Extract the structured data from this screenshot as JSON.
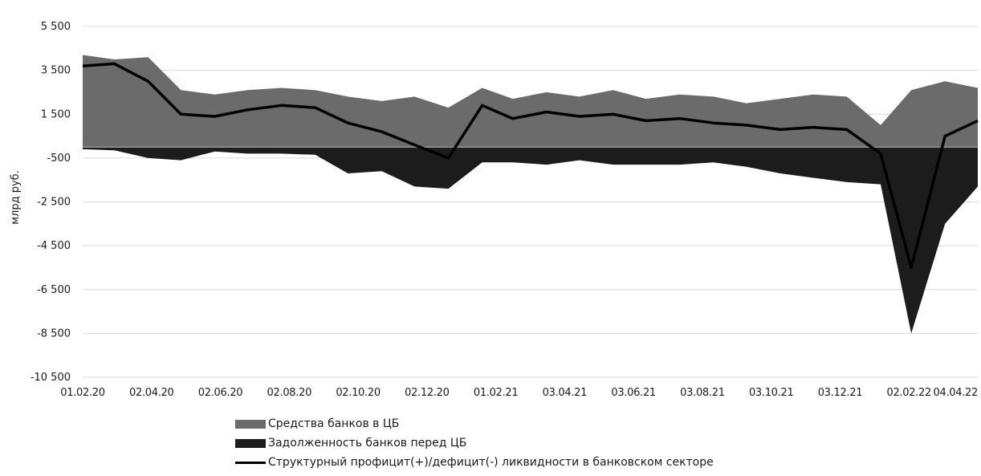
{
  "chart_data": {
    "type": "area",
    "ylabel": "млрд руб.",
    "ylim": [
      -10500,
      5500
    ],
    "yticks": [
      "5 500",
      "3 500",
      "1 500",
      "-500",
      "-2 500",
      "-4 500",
      "-6 500",
      "-8 500",
      "-10 500"
    ],
    "ytick_values": [
      5500,
      3500,
      1500,
      -500,
      -2500,
      -4500,
      -6500,
      -8500,
      -10500
    ],
    "xticks": [
      "01.02.20",
      "02.04.20",
      "02.06.20",
      "02.08.20",
      "02.10.20",
      "02.12.20",
      "01.02.21",
      "03.04.21",
      "03.06.21",
      "03.08.21",
      "03.10.21",
      "03.12.21",
      "02.02.22",
      "04.04.22"
    ],
    "xlim": [
      "2020-02-01",
      "2022-05-01"
    ],
    "grid": true,
    "legend_position": "bottom",
    "series": [
      {
        "name": "Средства банков в ЦБ",
        "kind": "area",
        "color": "#6b6b6b",
        "x": [
          "2020-02-01",
          "2020-03-01",
          "2020-04-01",
          "2020-05-01",
          "2020-06-01",
          "2020-07-01",
          "2020-08-01",
          "2020-09-01",
          "2020-10-01",
          "2020-11-01",
          "2020-12-01",
          "2021-01-01",
          "2021-02-01",
          "2021-03-01",
          "2021-04-01",
          "2021-05-01",
          "2021-06-01",
          "2021-07-01",
          "2021-08-01",
          "2021-09-01",
          "2021-10-01",
          "2021-11-01",
          "2021-12-01",
          "2022-01-01",
          "2022-02-01",
          "2022-03-01",
          "2022-04-01",
          "2022-05-01"
        ],
        "values": [
          4200,
          4000,
          4100,
          2600,
          2400,
          2600,
          2700,
          2600,
          2300,
          2100,
          2300,
          1800,
          2700,
          2200,
          2500,
          2300,
          2600,
          2200,
          2400,
          2300,
          2000,
          2200,
          2400,
          2300,
          1000,
          2600,
          3000,
          2700
        ]
      },
      {
        "name": "Задолженность банков перед ЦБ",
        "kind": "area",
        "color": "#1c1c1c",
        "x": [
          "2020-02-01",
          "2020-03-01",
          "2020-04-01",
          "2020-05-01",
          "2020-06-01",
          "2020-07-01",
          "2020-08-01",
          "2020-09-01",
          "2020-10-01",
          "2020-11-01",
          "2020-12-01",
          "2021-01-01",
          "2021-02-01",
          "2021-03-01",
          "2021-04-01",
          "2021-05-01",
          "2021-06-01",
          "2021-07-01",
          "2021-08-01",
          "2021-09-01",
          "2021-10-01",
          "2021-11-01",
          "2021-12-01",
          "2022-01-01",
          "2022-02-01",
          "2022-03-01",
          "2022-04-01",
          "2022-05-01"
        ],
        "values": [
          -100,
          -150,
          -500,
          -600,
          -200,
          -300,
          -300,
          -350,
          -1200,
          -1100,
          -1800,
          -1900,
          -700,
          -700,
          -800,
          -600,
          -800,
          -800,
          -800,
          -700,
          -900,
          -1200,
          -1400,
          -1600,
          -1700,
          -8500,
          -3500,
          -1800
        ]
      },
      {
        "name": "Структурный профицит(+)/дефицит(-) ликвидности в банковском секторе",
        "kind": "line",
        "color": "#000000",
        "x": [
          "2020-02-01",
          "2020-03-01",
          "2020-04-01",
          "2020-05-01",
          "2020-06-01",
          "2020-07-01",
          "2020-08-01",
          "2020-09-01",
          "2020-10-01",
          "2020-11-01",
          "2020-12-01",
          "2021-01-01",
          "2021-02-01",
          "2021-03-01",
          "2021-04-01",
          "2021-05-01",
          "2021-06-01",
          "2021-07-01",
          "2021-08-01",
          "2021-09-01",
          "2021-10-01",
          "2021-11-01",
          "2021-12-01",
          "2022-01-01",
          "2022-02-01",
          "2022-03-01",
          "2022-04-01",
          "2022-05-01"
        ],
        "values": [
          3700,
          3800,
          3000,
          1500,
          1400,
          1700,
          1900,
          1800,
          1100,
          700,
          100,
          -500,
          1900,
          1300,
          1600,
          1400,
          1500,
          1200,
          1300,
          1100,
          1000,
          800,
          900,
          800,
          -300,
          -5500,
          500,
          1200
        ]
      }
    ]
  }
}
